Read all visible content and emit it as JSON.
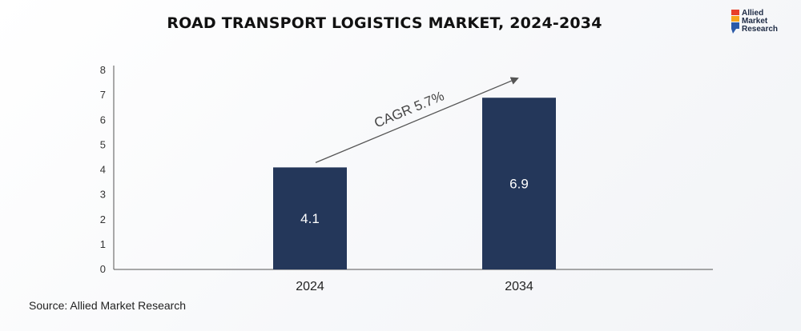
{
  "title": "ROAD TRANSPORT LOGISTICS MARKET, 2024-2034",
  "source": "Source: Allied Market Research",
  "logo": {
    "text": "Allied\nMarket\nResearch",
    "mark_colors": [
      "#e8402a",
      "#f7a51c",
      "#2b5aa8"
    ]
  },
  "chart_data": {
    "type": "bar",
    "categories": [
      "2024",
      "2034"
    ],
    "values": [
      4.1,
      6.9
    ],
    "data_labels": [
      "4.1",
      "6.9"
    ],
    "ylim": [
      0,
      8
    ],
    "yticks": [
      "0",
      "1",
      "2",
      "3",
      "4",
      "5",
      "6",
      "7",
      "8"
    ],
    "annotation": "CAGR 5.7%",
    "bar_color": "#24375a",
    "grid": false
  }
}
